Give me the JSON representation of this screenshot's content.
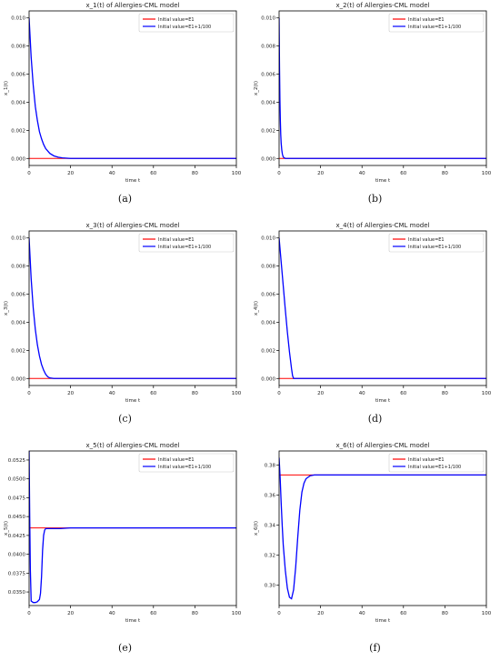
{
  "colors": {
    "e1": "#ff0000",
    "perturbed": "#0000ff",
    "axis": "#000000",
    "text": "#222222"
  },
  "legend": {
    "e1": "Initial value=E1",
    "perturbed": "Initial value=E1+1/100"
  },
  "chart_data": [
    {
      "type": "line",
      "caption": "(a)",
      "title": "x_1(t) of Allergies-CML model",
      "xlabel": "time t",
      "ylabel": "x_1(t)",
      "xlim": [
        0,
        100
      ],
      "ylim": [
        -0.0005,
        0.0105
      ],
      "xticks": [
        0,
        20,
        40,
        60,
        80,
        100
      ],
      "yticks": [
        0.0,
        0.002,
        0.004,
        0.006,
        0.008,
        0.01
      ],
      "yticklabels": [
        "0.000",
        "0.002",
        "0.004",
        "0.006",
        "0.008",
        "0.010"
      ],
      "series": [
        {
          "name": "Initial value=E1",
          "color": "#ff0000",
          "x": [
            0,
            100
          ],
          "y": [
            0.0,
            0.0
          ]
        },
        {
          "name": "Initial value=E1+1/100",
          "color": "#0000ff",
          "x": [
            0,
            1,
            2,
            3,
            4,
            5,
            6,
            7,
            8,
            10,
            12,
            14,
            16,
            20,
            100
          ],
          "y": [
            0.01,
            0.0072,
            0.0052,
            0.0037,
            0.0027,
            0.0019,
            0.0014,
            0.001,
            0.0007,
            0.00036,
            0.00018,
            9e-05,
            4e-05,
            0.0,
            0.0
          ]
        }
      ]
    },
    {
      "type": "line",
      "caption": "(b)",
      "title": "x_2(t) of Allergies-CML model",
      "xlabel": "time t",
      "ylabel": "x_2(t)",
      "xlim": [
        0,
        100
      ],
      "ylim": [
        -0.0005,
        0.0105
      ],
      "xticks": [
        0,
        20,
        40,
        60,
        80,
        100
      ],
      "yticks": [
        0.0,
        0.002,
        0.004,
        0.006,
        0.008,
        0.01
      ],
      "yticklabels": [
        "0.000",
        "0.002",
        "0.004",
        "0.006",
        "0.008",
        "0.010"
      ],
      "series": [
        {
          "name": "Initial value=E1",
          "color": "#ff0000",
          "x": [
            0,
            100
          ],
          "y": [
            0.0,
            0.0
          ]
        },
        {
          "name": "Initial value=E1+1/100",
          "color": "#0000ff",
          "x": [
            0,
            0.2,
            0.4,
            0.6,
            0.8,
            1.0,
            1.3,
            1.6,
            2.0,
            3.0,
            100
          ],
          "y": [
            0.01,
            0.0065,
            0.0042,
            0.0027,
            0.0017,
            0.0011,
            0.0006,
            0.0003,
            0.0001,
            0.0,
            0.0
          ]
        }
      ]
    },
    {
      "type": "line",
      "caption": "(c)",
      "title": "x_3(t) of Allergies-CML model",
      "xlabel": "time t",
      "ylabel": "x_3(t)",
      "xlim": [
        0,
        100
      ],
      "ylim": [
        -0.0005,
        0.0105
      ],
      "xticks": [
        0,
        20,
        40,
        60,
        80,
        100
      ],
      "yticks": [
        0.0,
        0.002,
        0.004,
        0.006,
        0.008,
        0.01
      ],
      "yticklabels": [
        "0.000",
        "0.002",
        "0.004",
        "0.006",
        "0.008",
        "0.010"
      ],
      "series": [
        {
          "name": "Initial value=E1",
          "color": "#ff0000",
          "x": [
            0,
            100
          ],
          "y": [
            0.0,
            0.0
          ]
        },
        {
          "name": "Initial value=E1+1/100",
          "color": "#0000ff",
          "x": [
            0,
            1,
            2,
            3,
            4,
            5,
            6,
            7,
            8,
            9,
            10,
            12,
            100
          ],
          "y": [
            0.01,
            0.0071,
            0.005,
            0.0035,
            0.0024,
            0.0016,
            0.001,
            0.0006,
            0.0003,
            0.00012,
            4e-05,
            0.0,
            0.0
          ]
        }
      ]
    },
    {
      "type": "line",
      "caption": "(d)",
      "title": "x_4(t) of Allergies-CML model",
      "xlabel": "time t",
      "ylabel": "x_4(t)",
      "xlim": [
        0,
        100
      ],
      "ylim": [
        -0.0005,
        0.0105
      ],
      "xticks": [
        0,
        20,
        40,
        60,
        80,
        100
      ],
      "yticks": [
        0.0,
        0.002,
        0.004,
        0.006,
        0.008,
        0.01
      ],
      "yticklabels": [
        "0.000",
        "0.002",
        "0.004",
        "0.006",
        "0.008",
        "0.010"
      ],
      "series": [
        {
          "name": "Initial value=E1",
          "color": "#ff0000",
          "x": [
            0,
            100
          ],
          "y": [
            0.0,
            0.0
          ]
        },
        {
          "name": "Initial value=E1+1/100",
          "color": "#0000ff",
          "x": [
            0,
            1,
            2,
            3,
            4,
            5,
            6,
            6.5,
            7,
            100
          ],
          "y": [
            0.01,
            0.0083,
            0.0066,
            0.0049,
            0.0033,
            0.0019,
            0.0007,
            0.0002,
            0.0,
            0.0
          ]
        }
      ]
    },
    {
      "type": "line",
      "caption": "(e)",
      "title": "x_5(t) of Allergies-CML model",
      "xlabel": "time t",
      "ylabel": "x_5(t)",
      "xlim": [
        0,
        100
      ],
      "ylim": [
        0.0332,
        0.0537
      ],
      "xticks": [
        0,
        20,
        40,
        60,
        80,
        100
      ],
      "yticks": [
        0.035,
        0.0375,
        0.04,
        0.0425,
        0.045,
        0.0475,
        0.05,
        0.0525
      ],
      "yticklabels": [
        "0.0350",
        "0.0375",
        "0.0400",
        "0.0425",
        "0.0450",
        "0.0475",
        "0.0500",
        "0.0525"
      ],
      "series": [
        {
          "name": "Initial value=E1",
          "color": "#ff0000",
          "x": [
            0,
            100
          ],
          "y": [
            0.0435,
            0.0435
          ]
        },
        {
          "name": "Initial value=E1+1/100",
          "color": "#0000ff",
          "x": [
            0,
            0.3,
            0.6,
            1,
            2,
            3,
            4,
            5,
            5.5,
            6,
            6.5,
            7,
            7.5,
            8,
            9,
            10,
            15,
            20,
            100
          ],
          "y": [
            0.0537,
            0.045,
            0.038,
            0.0338,
            0.0336,
            0.0336,
            0.0337,
            0.034,
            0.0348,
            0.037,
            0.0405,
            0.0425,
            0.0432,
            0.0434,
            0.0434,
            0.0434,
            0.0434,
            0.0435,
            0.0435
          ]
        }
      ]
    },
    {
      "type": "line",
      "caption": "(f)",
      "title": "x_6(t) of Allergies-CML model",
      "xlabel": "time t",
      "ylabel": "x_6(t)",
      "xlim": [
        0,
        100
      ],
      "ylim": [
        0.2865,
        0.3895
      ],
      "xticks": [
        0,
        20,
        40,
        60,
        80,
        100
      ],
      "yticks": [
        0.3,
        0.32,
        0.34,
        0.36,
        0.38
      ],
      "yticklabels": [
        "0.30",
        "0.32",
        "0.34",
        "0.36",
        "0.38"
      ],
      "series": [
        {
          "name": "Initial value=E1",
          "color": "#ff0000",
          "x": [
            0,
            100
          ],
          "y": [
            0.3735,
            0.3735
          ]
        },
        {
          "name": "Initial value=E1+1/100",
          "color": "#0000ff",
          "x": [
            0,
            0.5,
            1,
            1.5,
            2,
            3,
            4,
            5,
            6,
            7,
            8,
            9,
            10,
            11,
            12,
            13,
            15,
            17,
            20,
            25,
            100
          ],
          "y": [
            0.385,
            0.372,
            0.355,
            0.34,
            0.327,
            0.31,
            0.298,
            0.292,
            0.291,
            0.297,
            0.312,
            0.332,
            0.35,
            0.362,
            0.368,
            0.371,
            0.373,
            0.3735,
            0.3735,
            0.3735,
            0.3735
          ]
        }
      ]
    }
  ]
}
